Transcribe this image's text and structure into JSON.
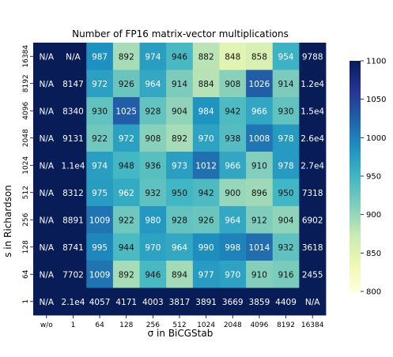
{
  "chart_data": {
    "type": "heatmap",
    "title": "Number of FP16 matrix-vector multiplications",
    "xlabel": "σ in BiCGStab",
    "ylabel": "s in Richardson",
    "x_categories": [
      "w/o",
      "1",
      "64",
      "128",
      "256",
      "512",
      "1024",
      "2048",
      "4096",
      "8192",
      "16384"
    ],
    "y_categories": [
      "16384",
      "8192",
      "4096",
      "2048",
      "1024",
      "512",
      "256",
      "128",
      "64",
      "1"
    ],
    "cells": [
      [
        "N/A",
        "N/A",
        "987",
        "892",
        "974",
        "946",
        "882",
        "848",
        "858",
        "954",
        "9788"
      ],
      [
        "N/A",
        "8147",
        "972",
        "926",
        "964",
        "914",
        "884",
        "908",
        "1026",
        "914",
        "1.2e4"
      ],
      [
        "N/A",
        "8340",
        "930",
        "1025",
        "928",
        "904",
        "984",
        "942",
        "966",
        "930",
        "1.5e4"
      ],
      [
        "N/A",
        "9131",
        "922",
        "972",
        "908",
        "892",
        "970",
        "938",
        "1008",
        "978",
        "2.6e4"
      ],
      [
        "N/A",
        "1.1e4",
        "974",
        "948",
        "936",
        "973",
        "1012",
        "966",
        "910",
        "978",
        "2.7e4"
      ],
      [
        "N/A",
        "8312",
        "975",
        "962",
        "932",
        "950",
        "942",
        "900",
        "896",
        "950",
        "7318"
      ],
      [
        "N/A",
        "8891",
        "1009",
        "922",
        "980",
        "928",
        "926",
        "964",
        "912",
        "904",
        "6902"
      ],
      [
        "N/A",
        "8741",
        "995",
        "944",
        "970",
        "964",
        "990",
        "998",
        "1014",
        "932",
        "3618"
      ],
      [
        "N/A",
        "7702",
        "1009",
        "892",
        "946",
        "894",
        "977",
        "970",
        "910",
        "916",
        "2455"
      ],
      [
        "N/A",
        "2.1e4",
        "4057",
        "4171",
        "4003",
        "3817",
        "3891",
        "3669",
        "3859",
        "4409",
        "N/A"
      ]
    ],
    "colorbar": {
      "min": 800,
      "max": 1100,
      "ticks": [
        800,
        850,
        900,
        950,
        1000,
        1050,
        1100
      ],
      "colormap": "YlGnBu"
    },
    "na_color": "#081d58",
    "grid": false
  }
}
